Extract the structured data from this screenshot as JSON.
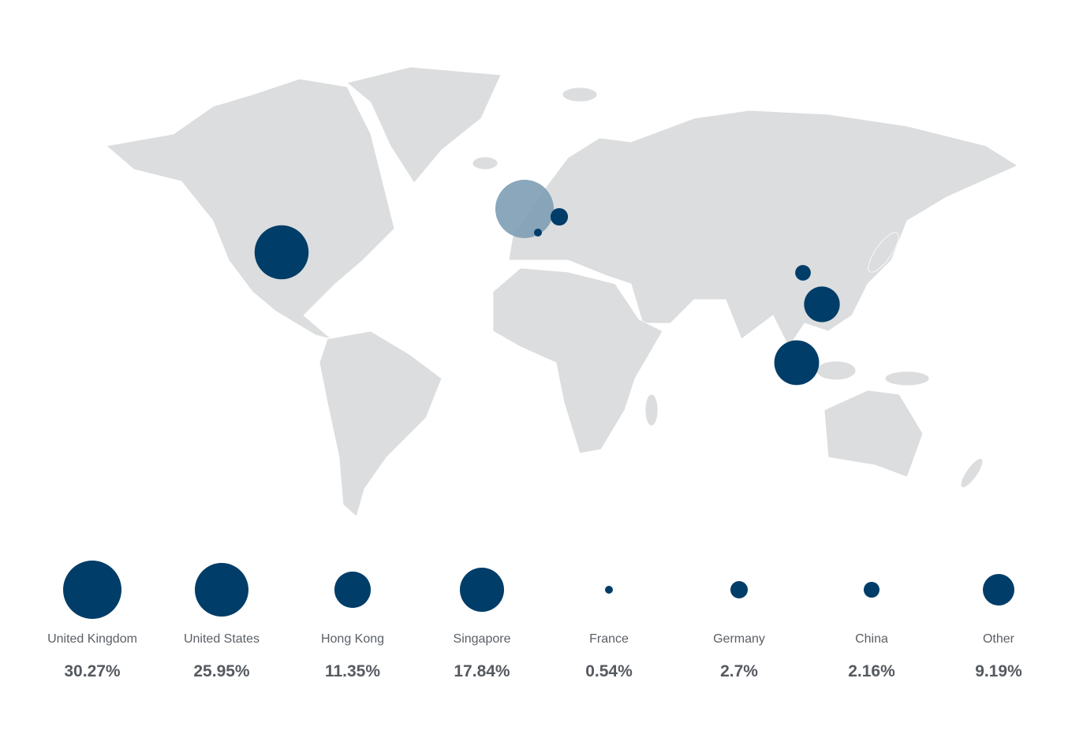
{
  "colors": {
    "land": "#dcddde",
    "border": "#ffffff",
    "bubble": "#003d68",
    "highlight_bubble": "#7d9db5",
    "label": "#5b6066",
    "value": "#555a60"
  },
  "highlighted": "United Kingdom",
  "items": [
    {
      "country": "United Kingdom",
      "percent": 30.27,
      "percent_label": "30.27%"
    },
    {
      "country": "United States",
      "percent": 25.95,
      "percent_label": "25.95%"
    },
    {
      "country": "Hong Kong",
      "percent": 11.35,
      "percent_label": "11.35%"
    },
    {
      "country": "Singapore",
      "percent": 17.84,
      "percent_label": "17.84%"
    },
    {
      "country": "France",
      "percent": 0.54,
      "percent_label": "0.54%"
    },
    {
      "country": "Germany",
      "percent": 2.7,
      "percent_label": "2.7%"
    },
    {
      "country": "China",
      "percent": 2.16,
      "percent_label": "2.16%"
    },
    {
      "country": "Other",
      "percent": 9.19,
      "percent_label": "9.19%"
    }
  ]
}
